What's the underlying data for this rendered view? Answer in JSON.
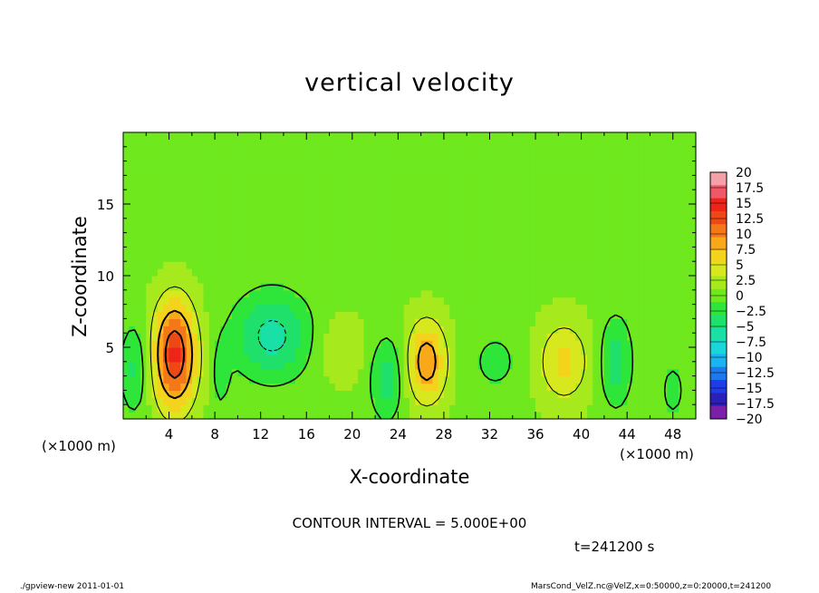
{
  "title": "vertical velocity",
  "xlabel": "X-coordinate",
  "ylabel": "Z-coordinate",
  "x_unit_left": "(×1000 m)",
  "x_unit_right": "(×1000 m)",
  "contour_note": "CONTOUR INTERVAL = 5.000E+00",
  "time_label": "t=241200 s",
  "footer_left": "./gpview-new   2011-01-01",
  "footer_right": "MarsCond_VelZ.nc@VelZ,x=0:50000,z=0:20000,t=241200",
  "colors": {
    "palette": [
      "#7a1fa8",
      "#2a1fb8",
      "#1e3de8",
      "#1e78ee",
      "#1ab4f0",
      "#19d6d8",
      "#18e0a6",
      "#1ee06a",
      "#2ee63a",
      "#6fe81e",
      "#a6ea1e",
      "#d8e81e",
      "#f4d31c",
      "#f8a818",
      "#f47818",
      "#ee4816",
      "#ee2418",
      "#f05868",
      "#f4a0a8"
    ]
  },
  "chart_data": {
    "type": "heatmap",
    "title": "vertical velocity",
    "xlabel": "X-coordinate",
    "ylabel": "Z-coordinate",
    "x_unit": "(×1000 m)",
    "xlim": [
      0,
      50
    ],
    "ylim": [
      0,
      20
    ],
    "x_ticks": [
      4,
      8,
      12,
      16,
      20,
      24,
      28,
      32,
      36,
      40,
      44,
      48
    ],
    "y_ticks": [
      5,
      10,
      15
    ],
    "colorbar": {
      "levels": [
        20,
        17.5,
        15,
        12.5,
        10,
        7.5,
        5,
        2.5,
        0,
        -2.5,
        -5,
        -7.5,
        -10,
        -12.5,
        -15,
        -17.5,
        -20
      ],
      "level_labels": [
        "20",
        "17.5",
        "15",
        "12.5",
        "10",
        "7.5",
        "5",
        "2.5",
        "0",
        "−2.5",
        "−5",
        "−7.5",
        "−10",
        "−12.5",
        "−15",
        "−17.5",
        "−20"
      ]
    },
    "contour_interval": 5.0,
    "features": [
      {
        "kind": "updraft",
        "x": 4.5,
        "z": 4.5,
        "amplitude": 16,
        "sx": 1.3,
        "sz": 2.6
      },
      {
        "kind": "downdraft",
        "x": 13,
        "z": 5.8,
        "amplitude": -8,
        "sx": 2.4,
        "sz": 2.1
      },
      {
        "kind": "downdraft",
        "x": 1.0,
        "z": 3.5,
        "amplitude": -5,
        "sx": 0.9,
        "sz": 2.2
      },
      {
        "kind": "updraft",
        "x": 26.5,
        "z": 4.0,
        "amplitude": 10,
        "sx": 1.2,
        "sz": 2.0
      },
      {
        "kind": "downdraft",
        "x": 23,
        "z": 2.8,
        "amplitude": -6,
        "sx": 1.0,
        "sz": 2.0
      },
      {
        "kind": "updraft",
        "x": 38.5,
        "z": 4.0,
        "amplitude": 6,
        "sx": 1.6,
        "sz": 2.0
      },
      {
        "kind": "downdraft",
        "x": 43,
        "z": 4.0,
        "amplitude": -6,
        "sx": 1.0,
        "sz": 2.2
      },
      {
        "kind": "downdraft",
        "x": 48,
        "z": 2.0,
        "amplitude": -3,
        "sx": 0.8,
        "sz": 1.5
      },
      {
        "kind": "updraft",
        "x": 19,
        "z": 5.0,
        "amplitude": 3,
        "sx": 1.5,
        "sz": 1.6
      },
      {
        "kind": "downdraft",
        "x": 8.5,
        "z": 3.0,
        "amplitude": -3,
        "sx": 0.6,
        "sz": 1.8
      },
      {
        "kind": "downdraft",
        "x": 32.5,
        "z": 4.0,
        "amplitude": -3,
        "sx": 1.5,
        "sz": 1.5
      }
    ]
  }
}
